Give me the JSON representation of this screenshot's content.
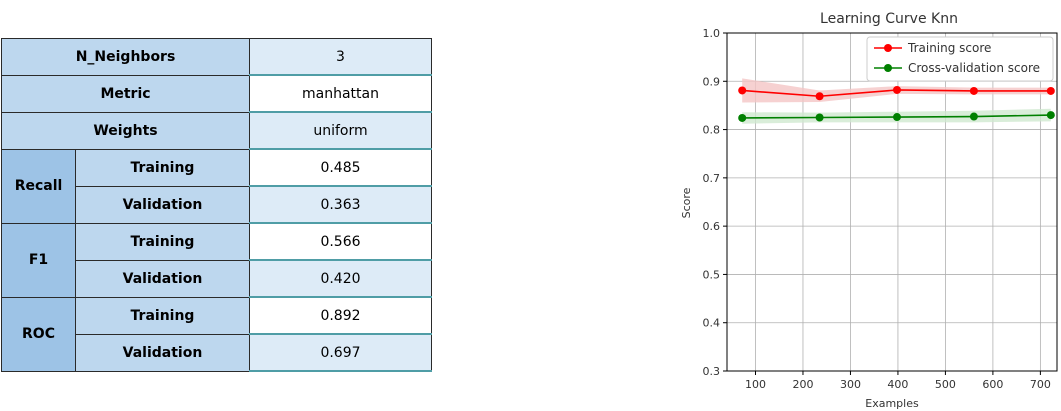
{
  "table": {
    "rows": [
      {
        "label": "N_Neighbors",
        "value": "3"
      },
      {
        "label": "Metric",
        "value": "manhattan"
      },
      {
        "label": "Weights",
        "value": "uniform"
      }
    ],
    "groups": [
      {
        "name": "Recall",
        "training_label": "Training",
        "training": "0.485",
        "validation_label": "Validation",
        "validation": "0.363"
      },
      {
        "name": "F1",
        "training_label": "Training",
        "training": "0.566",
        "validation_label": "Validation",
        "validation": "0.420"
      },
      {
        "name": "ROC",
        "training_label": "Training",
        "training": "0.892",
        "validation_label": "Validation",
        "validation": "0.697"
      }
    ]
  },
  "chart_data": {
    "type": "line",
    "title": "Learning Curve Knn",
    "xlabel": "Examples",
    "ylabel": "Score",
    "xlim": [
      40,
      735
    ],
    "ylim": [
      0.3,
      1.0
    ],
    "xticks": [
      100,
      200,
      300,
      400,
      500,
      600,
      700
    ],
    "yticks": [
      0.3,
      0.4,
      0.5,
      0.6,
      0.7,
      0.8,
      0.9,
      1.0
    ],
    "ytick_labels": [
      "0.3",
      "0.4",
      "0.5",
      "0.6",
      "0.7",
      "0.8",
      "0.9",
      "1.0"
    ],
    "grid": true,
    "legend": "top-right",
    "x": [
      72,
      235,
      398,
      560,
      722
    ],
    "series": [
      {
        "name": "Training score",
        "color": "#ff0000",
        "band_color": "#f4c6c6",
        "values": [
          0.881,
          0.869,
          0.882,
          0.88,
          0.88
        ],
        "band": [
          0.025,
          0.012,
          0.008,
          0.007,
          0.007
        ]
      },
      {
        "name": "Cross-validation score",
        "color": "#008000",
        "band_color": "#cfe8cf",
        "values": [
          0.824,
          0.825,
          0.826,
          0.827,
          0.83
        ],
        "band": [
          0.012,
          0.01,
          0.011,
          0.012,
          0.013
        ]
      }
    ]
  }
}
